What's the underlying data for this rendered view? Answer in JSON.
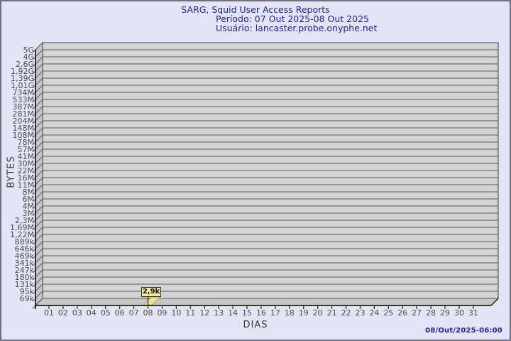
{
  "chart_data": {
    "type": "bar",
    "style": "3d-bar",
    "title": "SARG, Squid User Access Reports",
    "subtitle_period": "Período: 07 Out 2025-08 Out 2025",
    "subtitle_user": "Usuário: lancaster.probe.onyphe.net",
    "xlabel": "DIAS",
    "ylabel": "BYTES",
    "y_axis": {
      "scale": "logarithmic",
      "min_label": "69k",
      "max_label": "5G",
      "grid": "horizontal"
    },
    "y_tick_labels": [
      "5G",
      "4G",
      "2,6G",
      "1,92G",
      "1,39G",
      "1,01G",
      "734M",
      "533M",
      "387M",
      "281M",
      "204M",
      "148M",
      "108M",
      "78M",
      "57M",
      "41M",
      "30M",
      "22M",
      "16M",
      "11M",
      "8M",
      "6M",
      "4M",
      "3M",
      "2,3M",
      "1,69M",
      "1,22M",
      "889k",
      "646k",
      "469k",
      "341k",
      "247k",
      "180k",
      "131k",
      "95k",
      "69k"
    ],
    "x_tick_labels": [
      "01",
      "02",
      "03",
      "04",
      "05",
      "06",
      "07",
      "08",
      "09",
      "10",
      "11",
      "12",
      "13",
      "14",
      "15",
      "16",
      "17",
      "18",
      "19",
      "20",
      "21",
      "22",
      "23",
      "24",
      "25",
      "26",
      "27",
      "28",
      "29",
      "30",
      "31"
    ],
    "values": [
      null,
      null,
      null,
      null,
      null,
      null,
      null,
      2900,
      null,
      null,
      null,
      null,
      null,
      null,
      null,
      null,
      null,
      null,
      null,
      null,
      null,
      null,
      null,
      null,
      null,
      null,
      null,
      null,
      null,
      null,
      null
    ],
    "points": [
      {
        "day": "08",
        "label": "2,9k",
        "value_bytes": 2900
      }
    ],
    "legend": "none",
    "footer_timestamp": "08/Out/2025-06:00",
    "colors": {
      "background": "#e4e4f7",
      "page_border": "#70707e",
      "title_text": "#2121a8",
      "plot_back_wall": "#d4d4d4",
      "plot_side_wall": "#c6c6c6",
      "grid_line": "#5c5c5c",
      "axis_line": "#222222",
      "tick_text": "#4d4d4d",
      "bar_fill": "#f0e68c",
      "bar_label_bg": "#f1e895",
      "bar_label_border": "#2b2b2b"
    }
  }
}
